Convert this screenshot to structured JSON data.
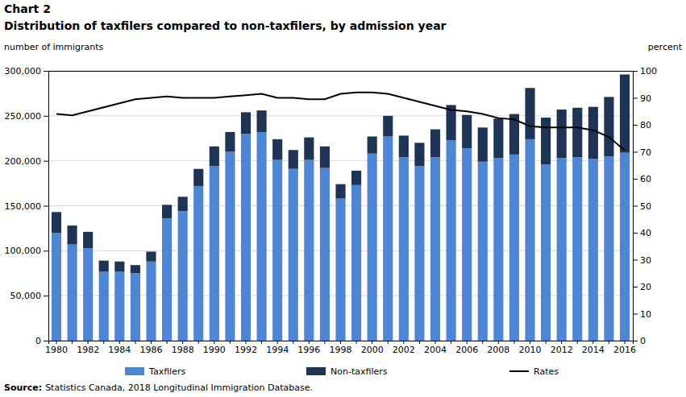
{
  "chart_data": {
    "type": "bar",
    "title": "Chart 2",
    "subtitle": "Distribution of taxfilers compared to non-taxfilers, by admission year",
    "y_label": "number of immigrants",
    "y2_label": "percent",
    "source_label": "Source:",
    "source": "Statistics Canada, 2018 Longitudinal Immigration Database.",
    "stacked": true,
    "grid": true,
    "legend": "bottom",
    "categories": [
      "1980",
      null,
      "1982",
      null,
      "1984",
      null,
      "1986",
      null,
      "1988",
      null,
      "1990",
      null,
      "1992",
      null,
      "1994",
      null,
      "1996",
      null,
      "1998",
      null,
      "2000",
      null,
      "2002",
      null,
      "2004",
      null,
      "2006",
      null,
      "2008",
      null,
      "2010",
      null,
      "2012",
      null,
      "2014",
      null,
      "2016"
    ],
    "series": [
      {
        "name": "Taxfilers",
        "type": "bar",
        "color": "#4f86d4",
        "values": [
          120000,
          107000,
          103000,
          77000,
          77000,
          75000,
          88000,
          136000,
          144000,
          172000,
          194000,
          210000,
          230000,
          232000,
          201000,
          191000,
          201000,
          192000,
          158000,
          173000,
          208000,
          227000,
          204000,
          194000,
          204000,
          223000,
          214000,
          199000,
          203000,
          207000,
          224000,
          196000,
          203000,
          204000,
          202000,
          205000,
          209000
        ]
      },
      {
        "name": "Non-taxfilers",
        "type": "bar",
        "color": "#1f3454",
        "values": [
          23000,
          21000,
          18000,
          12000,
          11000,
          9000,
          11000,
          15000,
          16000,
          19000,
          22000,
          22000,
          24000,
          24000,
          23000,
          21000,
          25000,
          24000,
          16000,
          16000,
          19000,
          23000,
          24000,
          26000,
          31000,
          39000,
          37000,
          38000,
          44000,
          45000,
          57000,
          52000,
          54000,
          55000,
          58000,
          66000,
          87000
        ]
      },
      {
        "name": "Rates",
        "type": "line",
        "axis": "y2",
        "color": "#000000",
        "values": [
          84,
          83.5,
          85,
          86.5,
          88,
          89.5,
          90,
          90.5,
          90,
          90,
          90,
          90.5,
          91,
          91.5,
          90,
          90,
          89.5,
          89.5,
          91.5,
          92,
          92,
          91.5,
          90,
          88.5,
          87,
          85.5,
          85,
          84,
          82.5,
          82,
          79.5,
          79,
          79,
          79,
          78,
          75.5,
          70.5
        ]
      }
    ],
    "ylim": [
      0,
      300000
    ],
    "yticks": [
      {
        "value": 0,
        "label": "0"
      },
      {
        "value": 50000,
        "label": "50,000"
      },
      {
        "value": 100000,
        "label": "100,000"
      },
      {
        "value": 150000,
        "label": "150,000"
      },
      {
        "value": 200000,
        "label": "200,000"
      },
      {
        "value": 250000,
        "label": "250,000"
      },
      {
        "value": 300000,
        "label": "300,000"
      }
    ],
    "y2lim": [
      0,
      100
    ],
    "y2ticks": [
      0,
      10,
      20,
      30,
      40,
      50,
      60,
      70,
      80,
      90,
      100
    ]
  }
}
